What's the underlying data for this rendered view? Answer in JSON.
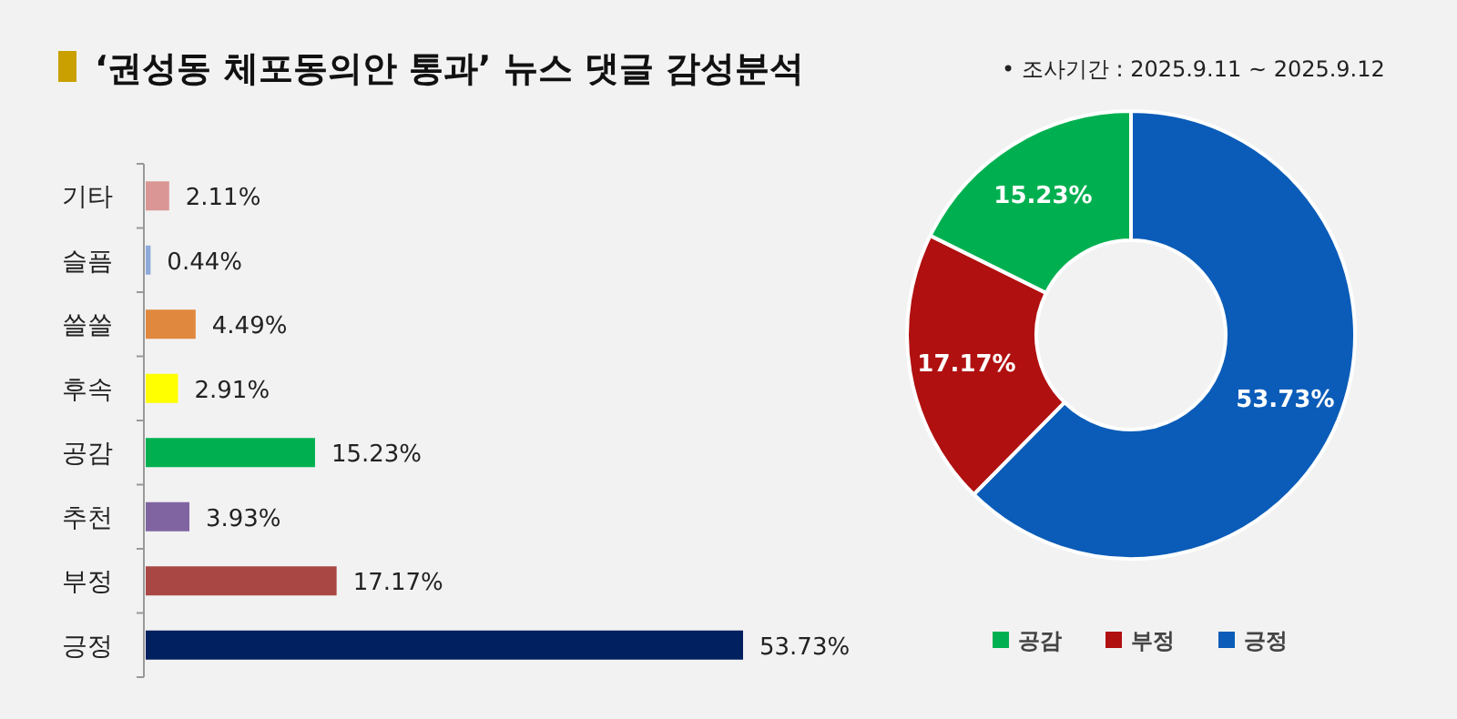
{
  "chart_data": [
    {
      "type": "bar",
      "orientation": "horizontal",
      "title": "‘권성동 체포동의안 통과’ 뉴스 댓글 감성분석",
      "categories": [
        "기타",
        "슬픔",
        "쓸쓸",
        "후속",
        "공감",
        "추천",
        "부정",
        "긍정"
      ],
      "values": [
        2.11,
        0.44,
        4.49,
        2.91,
        15.23,
        3.93,
        17.17,
        53.73
      ],
      "colors": [
        "#d99694",
        "#8eaadb",
        "#e0883d",
        "#ffff00",
        "#00b050",
        "#8064a2",
        "#a94744",
        "#002060"
      ],
      "value_labels": [
        "2.11%",
        "0.44%",
        "4.49%",
        "2.91%",
        "15.23%",
        "3.93%",
        "17.17%",
        "53.73%"
      ]
    },
    {
      "type": "donut",
      "subtitle": "•   조사기간 : 2025.9.11 ~ 2025.9.12",
      "categories": [
        "긍정",
        "부정",
        "공감"
      ],
      "values": [
        53.73,
        17.17,
        15.23
      ],
      "colors": [
        "#0a5cb8",
        "#b01010",
        "#00b050"
      ],
      "value_labels": [
        "53.73%",
        "17.17%",
        "15.23%"
      ],
      "legend": "bottom"
    }
  ]
}
